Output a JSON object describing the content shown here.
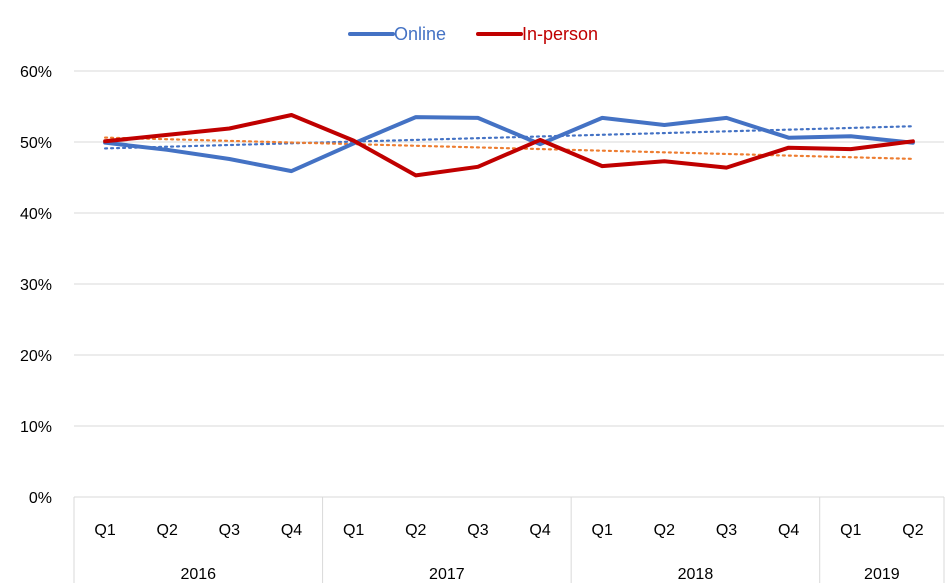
{
  "chart_data": {
    "type": "line",
    "title": "",
    "xlabel": "",
    "ylabel": "",
    "ylim": [
      0,
      60
    ],
    "y_ticks": [
      "0%",
      "10%",
      "20%",
      "30%",
      "40%",
      "50%",
      "60%"
    ],
    "grid": "horizontal",
    "legend_position": "top-center",
    "categories": [
      "Q1",
      "Q2",
      "Q3",
      "Q4",
      "Q1",
      "Q2",
      "Q3",
      "Q4",
      "Q1",
      "Q2",
      "Q3",
      "Q4",
      "Q1",
      "Q2"
    ],
    "groups": [
      {
        "label": "2016",
        "count": 4
      },
      {
        "label": "2017",
        "count": 4
      },
      {
        "label": "2018",
        "count": 4
      },
      {
        "label": "2019",
        "count": 2
      }
    ],
    "series": [
      {
        "name": "Online",
        "color": "#4472C4",
        "trendline": true,
        "trendline_color": "#4472C4",
        "values": [
          49.9,
          48.9,
          47.6,
          45.9,
          49.8,
          53.5,
          53.4,
          49.7,
          53.4,
          52.4,
          53.4,
          50.6,
          50.8,
          49.9
        ]
      },
      {
        "name": "In-person",
        "color": "#C00000",
        "trendline": true,
        "trendline_color": "#ED7D31",
        "values": [
          50.1,
          51.0,
          51.9,
          53.8,
          50.2,
          45.3,
          46.5,
          50.3,
          46.6,
          47.3,
          46.4,
          49.2,
          49.0,
          50.1
        ]
      }
    ]
  }
}
